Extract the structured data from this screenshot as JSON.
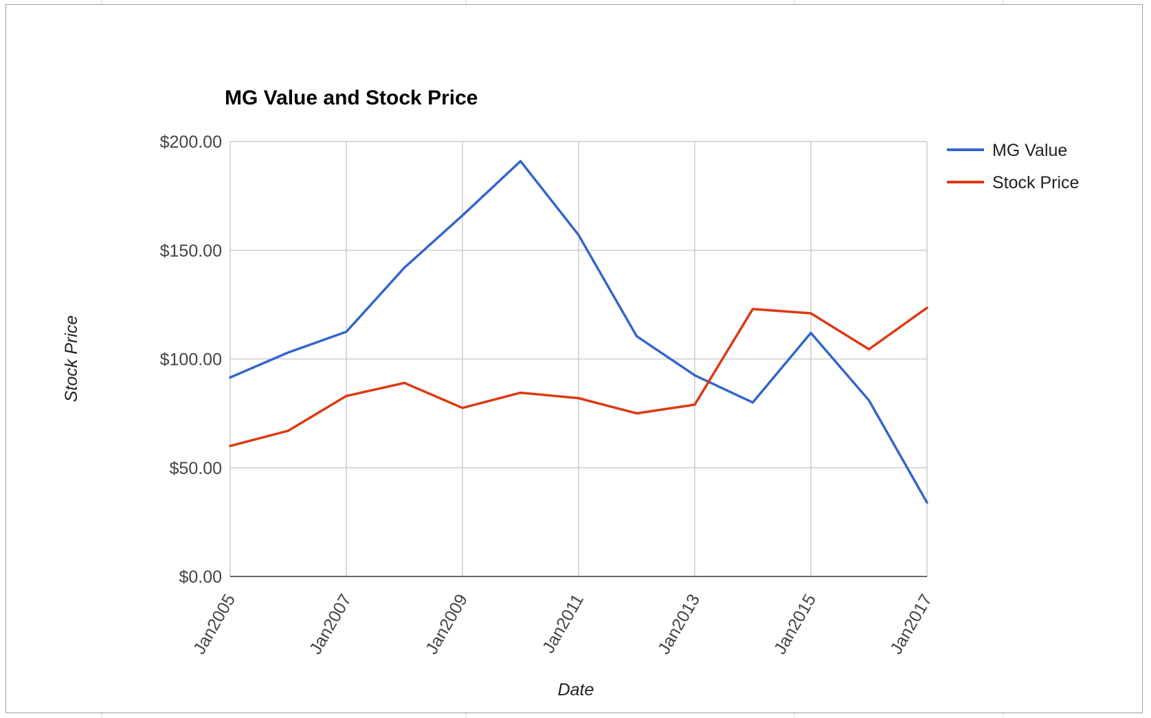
{
  "chart_data": {
    "type": "line",
    "title": "MG Value and Stock Price",
    "xlabel": "Date",
    "ylabel": "Stock Price",
    "x": [
      "Jan2005",
      "Jan2006",
      "Jan2007",
      "Jan2008",
      "Jan2009",
      "Jan2010",
      "Jan2011",
      "Jan2012",
      "Jan2013",
      "Jan2014",
      "Jan2015",
      "Jan2016",
      "Jan2017"
    ],
    "x_ticks": [
      "Jan2005",
      "Jan2007",
      "Jan2009",
      "Jan2011",
      "Jan2013",
      "Jan2015",
      "Jan2017"
    ],
    "ylim": [
      0,
      200
    ],
    "y_ticks": [
      "$0.00",
      "$50.00",
      "$100.00",
      "$150.00",
      "$200.00"
    ],
    "y_tick_values": [
      0,
      50,
      100,
      150,
      200
    ],
    "series": [
      {
        "name": "MG Value",
        "color": "#3366cc",
        "values": [
          91.5,
          103,
          112.5,
          142,
          166,
          191,
          157,
          110.5,
          92.5,
          80,
          112,
          81,
          34
        ]
      },
      {
        "name": "Stock Price",
        "color": "#dc3912",
        "values": [
          60,
          67,
          83,
          89,
          77.5,
          84.5,
          82,
          75,
          79,
          123,
          121,
          104.5,
          123.5
        ]
      }
    ],
    "grid": true,
    "legend_position": "right"
  }
}
